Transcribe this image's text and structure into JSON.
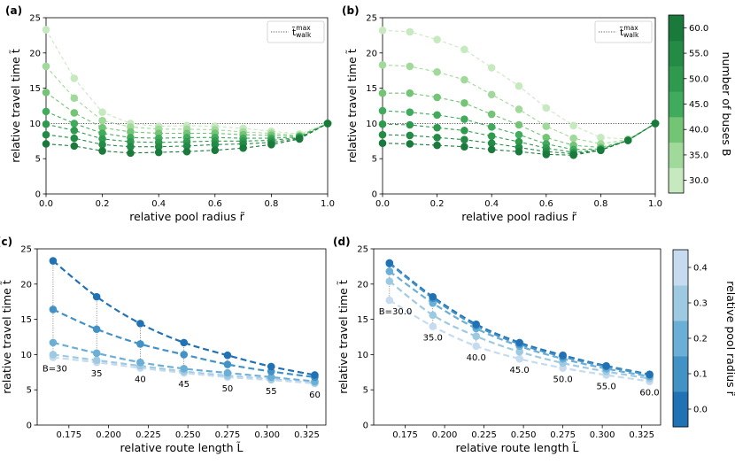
{
  "chart_data": [
    {
      "panel": "(a)",
      "type": "line",
      "xlabel": "relative pool radius r̃",
      "ylabel": "relative travel time t̃",
      "xlim": [
        0.0,
        1.0
      ],
      "ylim": [
        0,
        25
      ],
      "xticks": [
        "0.0",
        "0.2",
        "0.4",
        "0.6",
        "0.8",
        "1.0"
      ],
      "yticks": [
        "0",
        "5",
        "10",
        "15",
        "20",
        "25"
      ],
      "legend": "t̃ walk max",
      "legend_loc": "top-right",
      "walk_line": 10,
      "x": [
        0.0,
        0.1,
        0.2,
        0.3,
        0.4,
        0.5,
        0.6,
        0.7,
        0.8,
        0.9,
        1.0
      ],
      "series": [
        {
          "name": "B=30",
          "values": [
            23.3,
            16.4,
            11.6,
            10.0,
            9.6,
            9.7,
            9.6,
            9.3,
            8.9,
            8.5,
            10.0
          ]
        },
        {
          "name": "B=35",
          "values": [
            18.1,
            13.6,
            10.4,
            9.5,
            9.2,
            9.2,
            9.1,
            8.8,
            8.6,
            8.3,
            10.0
          ]
        },
        {
          "name": "B=40",
          "values": [
            14.4,
            11.5,
            9.4,
            8.8,
            8.6,
            8.6,
            8.6,
            8.4,
            8.3,
            8.2,
            10.0
          ]
        },
        {
          "name": "B=45",
          "values": [
            11.7,
            10.0,
            8.6,
            8.0,
            7.9,
            8.0,
            8.0,
            7.9,
            7.9,
            8.1,
            10.0
          ]
        },
        {
          "name": "B=50",
          "values": [
            9.9,
            9.0,
            7.8,
            7.4,
            7.3,
            7.4,
            7.5,
            7.5,
            7.6,
            8.0,
            10.0
          ]
        },
        {
          "name": "B=55",
          "values": [
            8.4,
            7.9,
            7.0,
            6.7,
            6.7,
            6.8,
            7.0,
            7.1,
            7.3,
            7.9,
            10.0
          ]
        },
        {
          "name": "B=60",
          "values": [
            7.1,
            6.8,
            6.1,
            5.8,
            5.9,
            6.0,
            6.2,
            6.5,
            7.0,
            7.8,
            10.0
          ]
        }
      ]
    },
    {
      "panel": "(b)",
      "type": "line",
      "xlabel": "relative pool radius r̃",
      "ylabel": "relative travel time t̃",
      "xlim": [
        0.0,
        1.0
      ],
      "ylim": [
        0,
        25
      ],
      "xticks": [
        "0.0",
        "0.2",
        "0.4",
        "0.6",
        "0.8",
        "1.0"
      ],
      "yticks": [
        "0",
        "5",
        "10",
        "15",
        "20",
        "25"
      ],
      "legend": "t̃ walk max",
      "legend_loc": "top-right",
      "walk_line": 10,
      "x": [
        0.0,
        0.1,
        0.2,
        0.3,
        0.4,
        0.5,
        0.6,
        0.7,
        0.8,
        0.9,
        1.0
      ],
      "series": [
        {
          "name": "B=30",
          "values": [
            23.2,
            23.0,
            21.9,
            20.5,
            17.9,
            15.3,
            12.2,
            9.7,
            8.0,
            7.8,
            10.0
          ]
        },
        {
          "name": "B=35",
          "values": [
            18.3,
            18.1,
            17.3,
            16.2,
            14.1,
            12.0,
            9.6,
            7.9,
            7.1,
            7.7,
            10.0
          ]
        },
        {
          "name": "B=40",
          "values": [
            14.3,
            14.3,
            13.7,
            12.9,
            11.3,
            9.8,
            8.0,
            6.9,
            6.6,
            7.6,
            10.0
          ]
        },
        {
          "name": "B=45",
          "values": [
            11.8,
            11.6,
            11.2,
            10.6,
            9.5,
            8.4,
            7.1,
            6.3,
            6.4,
            7.6,
            10.0
          ]
        },
        {
          "name": "B=50",
          "values": [
            9.9,
            9.8,
            9.4,
            9.0,
            8.2,
            7.4,
            6.5,
            5.9,
            6.3,
            7.6,
            10.0
          ]
        },
        {
          "name": "B=55",
          "values": [
            8.4,
            8.3,
            8.0,
            7.7,
            7.2,
            6.6,
            6.0,
            5.7,
            6.2,
            7.6,
            10.0
          ]
        },
        {
          "name": "B=60",
          "values": [
            7.2,
            7.1,
            6.9,
            6.7,
            6.3,
            6.0,
            5.6,
            5.5,
            6.2,
            7.6,
            10.0
          ]
        }
      ]
    },
    {
      "panel": "(c)",
      "type": "line",
      "xlabel": "relative route length L̃",
      "ylabel": "relative travel time t̃",
      "xlim": [
        0.155,
        0.337
      ],
      "ylim": [
        0,
        25
      ],
      "xticks": [
        "0.175",
        "0.200",
        "0.225",
        "0.250",
        "0.275",
        "0.300",
        "0.325"
      ],
      "yticks": [
        "0",
        "5",
        "10",
        "15",
        "20",
        "25"
      ],
      "x": [
        0.165,
        0.1925,
        0.22,
        0.2475,
        0.275,
        0.3025,
        0.33
      ],
      "b_labels": [
        "B=30",
        "35",
        "40",
        "45",
        "50",
        "55",
        "60"
      ],
      "series": [
        {
          "name": "r=0.0",
          "values": [
            23.3,
            18.2,
            14.4,
            11.7,
            9.9,
            8.3,
            7.1
          ]
        },
        {
          "name": "r=0.1",
          "values": [
            16.4,
            13.6,
            11.5,
            10.0,
            8.6,
            7.6,
            6.8
          ]
        },
        {
          "name": "r=0.2",
          "values": [
            11.7,
            10.2,
            8.9,
            8.0,
            7.4,
            6.8,
            6.2
          ]
        },
        {
          "name": "r=0.3",
          "values": [
            10.0,
            9.2,
            8.4,
            7.6,
            7.0,
            6.5,
            6.0
          ]
        },
        {
          "name": "r=0.4",
          "values": [
            9.6,
            8.9,
            8.1,
            7.4,
            6.8,
            6.4,
            5.9
          ]
        }
      ]
    },
    {
      "panel": "(d)",
      "type": "line",
      "xlabel": "relative route length L̃",
      "ylabel": "relative travel time t̃",
      "xlim": [
        0.155,
        0.337
      ],
      "ylim": [
        0,
        25
      ],
      "xticks": [
        "0.175",
        "0.200",
        "0.225",
        "0.250",
        "0.275",
        "0.300",
        "0.325"
      ],
      "yticks": [
        "0",
        "5",
        "10",
        "15",
        "20",
        "25"
      ],
      "x": [
        0.165,
        0.1925,
        0.22,
        0.2475,
        0.275,
        0.3025,
        0.33
      ],
      "b_labels": [
        "B=30.0",
        "35.0",
        "40.0",
        "45.0",
        "50.0",
        "55.0",
        "60.0"
      ],
      "series": [
        {
          "name": "r=0.0",
          "values": [
            23.0,
            18.2,
            14.3,
            11.7,
            9.9,
            8.4,
            7.2
          ]
        },
        {
          "name": "r=0.1",
          "values": [
            22.9,
            18.0,
            14.1,
            11.5,
            9.7,
            8.3,
            7.1
          ]
        },
        {
          "name": "r=0.2",
          "values": [
            21.8,
            17.3,
            13.7,
            11.2,
            9.4,
            8.0,
            6.9
          ]
        },
        {
          "name": "r=0.3",
          "values": [
            20.4,
            15.6,
            12.6,
            10.4,
            8.8,
            7.6,
            6.6
          ]
        },
        {
          "name": "r=0.4",
          "values": [
            17.7,
            14.0,
            11.2,
            9.4,
            8.1,
            7.1,
            6.2
          ]
        }
      ]
    }
  ],
  "colorbar_buses": {
    "label": "number of buses B",
    "ticks": [
      "30.0",
      "35.0",
      "40.0",
      "45.0",
      "50.0",
      "55.0",
      "60.0"
    ],
    "colors": [
      "#c7e9c0",
      "#a1d99b",
      "#74c476",
      "#41ab5d",
      "#2f9a4e",
      "#238b45",
      "#1a7a3c"
    ]
  },
  "colorbar_radius": {
    "label": "relative pool radius r̃",
    "ticks": [
      "0.0",
      "0.1",
      "0.2",
      "0.3",
      "0.4"
    ],
    "colors": [
      "#2171b5",
      "#4292c6",
      "#6baed6",
      "#9ecae1",
      "#c6dbef"
    ]
  }
}
